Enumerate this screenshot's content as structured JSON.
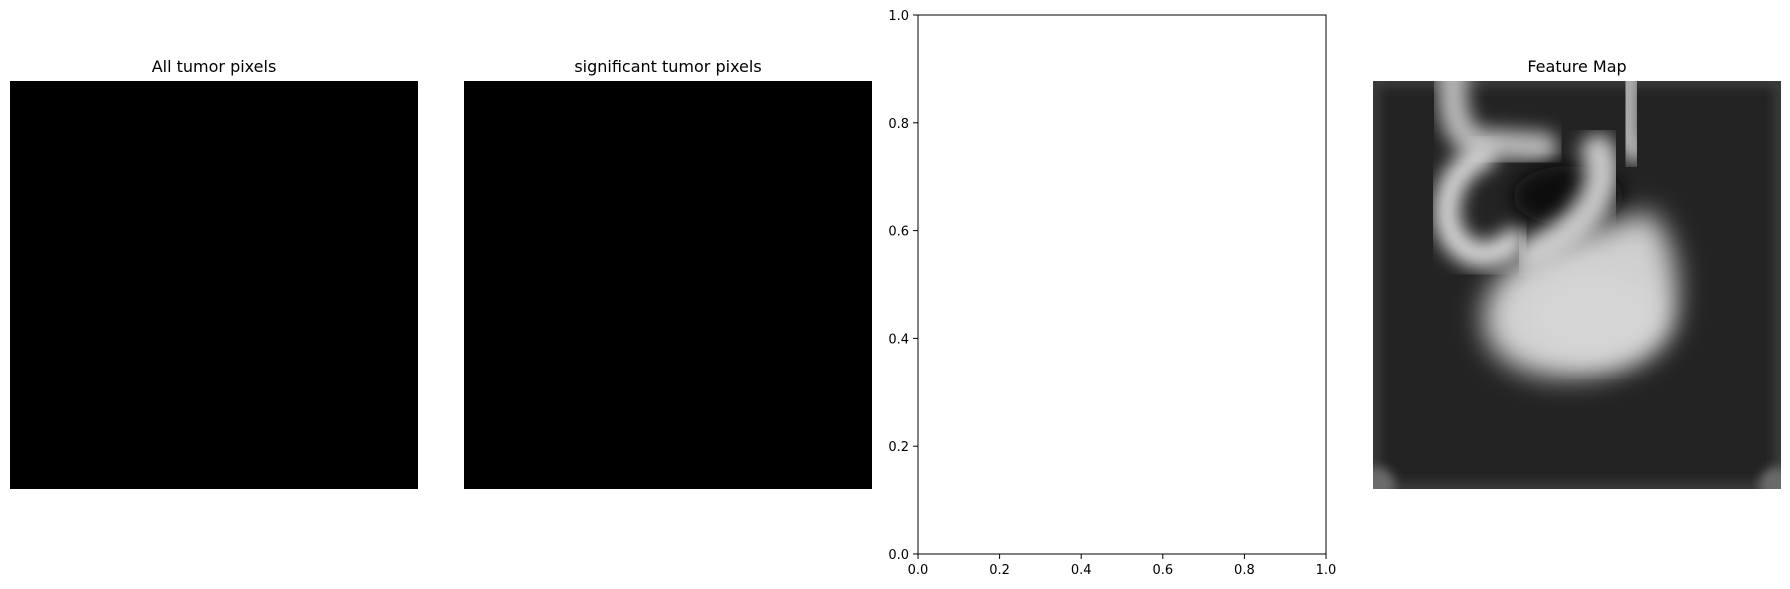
{
  "panels": [
    {
      "title": "All tumor pixels"
    },
    {
      "title": "significant tumor pixels"
    },
    {
      "title": ""
    },
    {
      "title": "Feature Map"
    }
  ],
  "chart_data": [
    {
      "type": "heatmap",
      "title": "All tumor pixels",
      "colormap": "gray",
      "values": "all zero (black image)"
    },
    {
      "type": "heatmap",
      "title": "significant tumor pixels",
      "colormap": "gray",
      "values": "all zero (black image)"
    },
    {
      "type": "scatter",
      "title": "",
      "xlabel": "",
      "ylabel": "",
      "xlim": [
        0.0,
        1.0
      ],
      "ylim": [
        0.0,
        1.0
      ],
      "xticks": [
        "0.0",
        "0.2",
        "0.4",
        "0.6",
        "0.8",
        "1.0"
      ],
      "yticks": [
        "0.0",
        "0.2",
        "0.4",
        "0.6",
        "0.8",
        "1.0"
      ],
      "series": [],
      "grid": false
    },
    {
      "type": "heatmap",
      "title": "Feature Map",
      "colormap": "gray",
      "values": "blurred grayscale feature map"
    }
  ],
  "colors": {
    "background": "#ffffff",
    "image_black": "#000000",
    "feature_bg": "#222222"
  }
}
